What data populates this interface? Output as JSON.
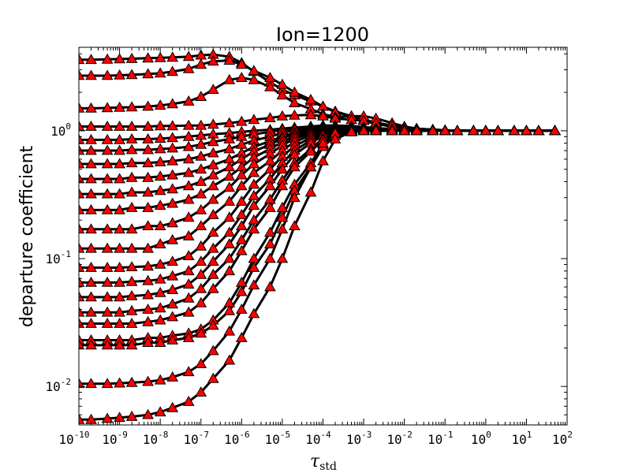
{
  "chart_data": {
    "type": "line",
    "title": "Ion=1200",
    "xlabel": "τ",
    "xlabel_subscript": "std",
    "ylabel": "departure coefficient",
    "xscale": "log",
    "yscale": "log",
    "xlim": [
      1e-10,
      100
    ],
    "ylim": [
      0.005,
      4.5
    ],
    "grid": false,
    "marker": "triangle",
    "line_color": "#000000",
    "marker_color": "#ff0000",
    "x_tick_exponents": [
      -10,
      -9,
      -8,
      -7,
      -6,
      -5,
      -4,
      -3,
      -2,
      -1,
      0,
      1,
      2
    ],
    "y_tick_exponents": [
      -2,
      -1,
      0
    ],
    "x": [
      1e-10,
      2e-10,
      5e-10,
      1e-09,
      2e-09,
      5e-09,
      1e-08,
      2e-08,
      5e-08,
      1e-07,
      2e-07,
      5e-07,
      1e-06,
      2e-06,
      5e-06,
      1e-05,
      2e-05,
      5e-05,
      0.0001,
      0.0002,
      0.0005,
      0.001,
      0.002,
      0.005,
      0.01,
      0.02,
      0.05,
      0.1,
      0.2,
      0.5,
      1,
      2,
      5,
      10,
      20,
      50
    ],
    "series": [
      {
        "values": [
          3.6,
          3.6,
          3.62,
          3.64,
          3.66,
          3.7,
          3.72,
          3.75,
          3.8,
          3.9,
          3.95,
          3.8,
          3.4,
          2.9,
          2.4,
          2.1,
          1.9,
          1.7,
          1.55,
          1.42,
          1.3,
          1.2,
          1.13,
          1.08,
          1.05,
          1.03,
          1.02,
          1.01,
          1.0,
          1.0,
          1.0,
          1.0,
          1.0,
          1.0,
          1.0,
          1.0
        ]
      },
      {
        "values": [
          2.7,
          2.7,
          2.7,
          2.72,
          2.74,
          2.78,
          2.82,
          2.9,
          3.05,
          3.3,
          3.5,
          3.55,
          3.3,
          2.95,
          2.6,
          2.3,
          2.0,
          1.75,
          1.55,
          1.4,
          1.3,
          1.22,
          1.16,
          1.1,
          1.06,
          1.04,
          1.02,
          1.01,
          1.0,
          1.0,
          1.0,
          1.0,
          1.0,
          1.0,
          1.0,
          1.0
        ]
      },
      {
        "values": [
          1.5,
          1.5,
          1.51,
          1.52,
          1.53,
          1.55,
          1.58,
          1.62,
          1.7,
          1.85,
          2.1,
          2.5,
          2.6,
          2.5,
          2.2,
          1.9,
          1.65,
          1.48,
          1.35,
          1.28,
          1.3,
          1.3,
          1.25,
          1.15,
          1.08,
          1.04,
          1.02,
          1.01,
          1.0,
          1.0,
          1.0,
          1.0,
          1.0,
          1.0,
          1.0,
          1.0
        ]
      },
      {
        "values": [
          1.08,
          1.08,
          1.08,
          1.08,
          1.08,
          1.08,
          1.09,
          1.09,
          1.1,
          1.1,
          1.12,
          1.15,
          1.18,
          1.22,
          1.26,
          1.3,
          1.32,
          1.33,
          1.3,
          1.25,
          1.22,
          1.2,
          1.15,
          1.1,
          1.06,
          1.03,
          1.02,
          1.01,
          1.0,
          1.0,
          1.0,
          1.0,
          1.0,
          1.0,
          1.0,
          1.0
        ]
      },
      {
        "values": [
          0.85,
          0.85,
          0.85,
          0.85,
          0.86,
          0.86,
          0.87,
          0.88,
          0.9,
          0.92,
          0.94,
          0.96,
          0.98,
          1.0,
          1.02,
          1.04,
          1.06,
          1.08,
          1.1,
          1.1,
          1.09,
          1.07,
          1.05,
          1.03,
          1.02,
          1.01,
          1.0,
          1.0,
          1.0,
          1.0,
          1.0,
          1.0,
          1.0,
          1.0,
          1.0,
          1.0
        ]
      },
      {
        "values": [
          0.7,
          0.7,
          0.7,
          0.7,
          0.71,
          0.71,
          0.72,
          0.73,
          0.75,
          0.78,
          0.82,
          0.86,
          0.9,
          0.94,
          0.98,
          1.02,
          1.05,
          1.08,
          1.1,
          1.1,
          1.08,
          1.06,
          1.04,
          1.02,
          1.01,
          1.0,
          1.0,
          1.0,
          1.0,
          1.0,
          1.0,
          1.0,
          1.0,
          1.0,
          1.0,
          1.0
        ]
      },
      {
        "values": [
          0.55,
          0.55,
          0.55,
          0.55,
          0.56,
          0.56,
          0.57,
          0.58,
          0.6,
          0.63,
          0.67,
          0.72,
          0.78,
          0.84,
          0.9,
          0.96,
          1.02,
          1.06,
          1.08,
          1.08,
          1.06,
          1.04,
          1.02,
          1.01,
          1.0,
          1.0,
          1.0,
          1.0,
          1.0,
          1.0,
          1.0,
          1.0,
          1.0,
          1.0,
          1.0,
          1.0
        ]
      },
      {
        "values": [
          0.42,
          0.42,
          0.42,
          0.42,
          0.43,
          0.43,
          0.44,
          0.45,
          0.47,
          0.5,
          0.54,
          0.6,
          0.67,
          0.75,
          0.83,
          0.9,
          0.97,
          1.03,
          1.06,
          1.07,
          1.05,
          1.03,
          1.02,
          1.01,
          1.0,
          1.0,
          1.0,
          1.0,
          1.0,
          1.0,
          1.0,
          1.0,
          1.0,
          1.0,
          1.0,
          1.0
        ]
      },
      {
        "values": [
          0.32,
          0.32,
          0.32,
          0.32,
          0.33,
          0.33,
          0.34,
          0.35,
          0.37,
          0.4,
          0.45,
          0.52,
          0.6,
          0.69,
          0.78,
          0.87,
          0.95,
          1.01,
          1.05,
          1.06,
          1.05,
          1.03,
          1.01,
          1.0,
          1.0,
          1.0,
          1.0,
          1.0,
          1.0,
          1.0,
          1.0,
          1.0,
          1.0,
          1.0,
          1.0,
          1.0
        ]
      },
      {
        "values": [
          0.24,
          0.24,
          0.24,
          0.24,
          0.25,
          0.25,
          0.26,
          0.27,
          0.29,
          0.32,
          0.37,
          0.44,
          0.52,
          0.62,
          0.72,
          0.82,
          0.91,
          0.98,
          1.03,
          1.05,
          1.04,
          1.02,
          1.01,
          1.0,
          1.0,
          1.0,
          1.0,
          1.0,
          1.0,
          1.0,
          1.0,
          1.0,
          1.0,
          1.0,
          1.0,
          1.0
        ]
      },
      {
        "values": [
          0.17,
          0.17,
          0.17,
          0.17,
          0.17,
          0.18,
          0.18,
          0.19,
          0.21,
          0.24,
          0.29,
          0.36,
          0.45,
          0.55,
          0.66,
          0.77,
          0.87,
          0.95,
          1.01,
          1.04,
          1.03,
          1.02,
          1.01,
          1.0,
          1.0,
          1.0,
          1.0,
          1.0,
          1.0,
          1.0,
          1.0,
          1.0,
          1.0,
          1.0,
          1.0,
          1.0
        ]
      },
      {
        "values": [
          0.12,
          0.12,
          0.12,
          0.12,
          0.12,
          0.12,
          0.13,
          0.14,
          0.15,
          0.18,
          0.22,
          0.28,
          0.37,
          0.47,
          0.58,
          0.7,
          0.82,
          0.92,
          0.99,
          1.03,
          1.03,
          1.02,
          1.01,
          1.0,
          1.0,
          1.0,
          1.0,
          1.0,
          1.0,
          1.0,
          1.0,
          1.0,
          1.0,
          1.0,
          1.0,
          1.0
        ]
      },
      {
        "values": [
          0.085,
          0.085,
          0.085,
          0.085,
          0.086,
          0.087,
          0.09,
          0.095,
          0.105,
          0.125,
          0.16,
          0.21,
          0.28,
          0.38,
          0.5,
          0.63,
          0.76,
          0.88,
          0.97,
          1.02,
          1.02,
          1.01,
          1.0,
          1.0,
          1.0,
          1.0,
          1.0,
          1.0,
          1.0,
          1.0,
          1.0,
          1.0,
          1.0,
          1.0,
          1.0,
          1.0
        ]
      },
      {
        "values": [
          0.065,
          0.065,
          0.065,
          0.065,
          0.066,
          0.067,
          0.069,
          0.073,
          0.08,
          0.095,
          0.12,
          0.16,
          0.22,
          0.31,
          0.42,
          0.56,
          0.7,
          0.84,
          0.94,
          1.0,
          1.01,
          1.01,
          1.0,
          1.0,
          1.0,
          1.0,
          1.0,
          1.0,
          1.0,
          1.0,
          1.0,
          1.0,
          1.0,
          1.0,
          1.0,
          1.0
        ]
      },
      {
        "values": [
          0.05,
          0.05,
          0.05,
          0.05,
          0.051,
          0.052,
          0.054,
          0.057,
          0.063,
          0.075,
          0.095,
          0.13,
          0.18,
          0.26,
          0.37,
          0.5,
          0.65,
          0.8,
          0.92,
          0.99,
          1.0,
          1.0,
          1.0,
          1.0,
          1.0,
          1.0,
          1.0,
          1.0,
          1.0,
          1.0,
          1.0,
          1.0,
          1.0,
          1.0,
          1.0,
          1.0
        ]
      },
      {
        "values": [
          0.038,
          0.038,
          0.038,
          0.038,
          0.039,
          0.04,
          0.041,
          0.044,
          0.049,
          0.058,
          0.075,
          0.1,
          0.14,
          0.2,
          0.29,
          0.41,
          0.56,
          0.72,
          0.87,
          0.96,
          0.99,
          1.0,
          1.0,
          1.0,
          1.0,
          1.0,
          1.0,
          1.0,
          1.0,
          1.0,
          1.0,
          1.0,
          1.0,
          1.0,
          1.0,
          1.0
        ]
      },
      {
        "values": [
          0.031,
          0.031,
          0.031,
          0.031,
          0.031,
          0.032,
          0.033,
          0.035,
          0.038,
          0.045,
          0.058,
          0.08,
          0.115,
          0.17,
          0.25,
          0.37,
          0.52,
          0.69,
          0.85,
          0.95,
          0.99,
          1.0,
          1.0,
          1.0,
          1.0,
          1.0,
          1.0,
          1.0,
          1.0,
          1.0,
          1.0,
          1.0,
          1.0,
          1.0,
          1.0,
          1.0
        ]
      },
      {
        "values": [
          0.023,
          0.023,
          0.023,
          0.023,
          0.023,
          0.024,
          0.024,
          0.025,
          0.026,
          0.028,
          0.033,
          0.045,
          0.065,
          0.1,
          0.16,
          0.25,
          0.38,
          0.56,
          0.78,
          0.93,
          0.99,
          1.0,
          1.0,
          1.0,
          1.0,
          1.0,
          1.0,
          1.0,
          1.0,
          1.0,
          1.0,
          1.0,
          1.0,
          1.0,
          1.0,
          1.0
        ]
      },
      {
        "values": [
          0.021,
          0.021,
          0.021,
          0.021,
          0.021,
          0.022,
          0.022,
          0.023,
          0.024,
          0.026,
          0.03,
          0.039,
          0.055,
          0.085,
          0.13,
          0.21,
          0.34,
          0.52,
          0.75,
          0.92,
          0.98,
          1.0,
          1.0,
          1.0,
          1.0,
          1.0,
          1.0,
          1.0,
          1.0,
          1.0,
          1.0,
          1.0,
          1.0,
          1.0,
          1.0,
          1.0
        ]
      },
      {
        "values": [
          0.0105,
          0.0105,
          0.0105,
          0.0106,
          0.0107,
          0.0109,
          0.0112,
          0.0118,
          0.013,
          0.015,
          0.019,
          0.027,
          0.04,
          0.062,
          0.1,
          0.17,
          0.3,
          0.52,
          0.8,
          0.96,
          1.0,
          1.0,
          1.0,
          1.0,
          1.0,
          1.0,
          1.0,
          1.0,
          1.0,
          1.0,
          1.0,
          1.0,
          1.0,
          1.0,
          1.0,
          1.0
        ]
      },
      {
        "values": [
          0.0055,
          0.0055,
          0.0056,
          0.0057,
          0.0058,
          0.006,
          0.0063,
          0.0068,
          0.0076,
          0.009,
          0.0115,
          0.016,
          0.024,
          0.037,
          0.06,
          0.1,
          0.18,
          0.33,
          0.58,
          0.86,
          0.98,
          1.0,
          1.0,
          1.0,
          1.0,
          1.0,
          1.0,
          1.0,
          1.0,
          1.0,
          1.0,
          1.0,
          1.0,
          1.0,
          1.0,
          1.0
        ]
      }
    ]
  }
}
